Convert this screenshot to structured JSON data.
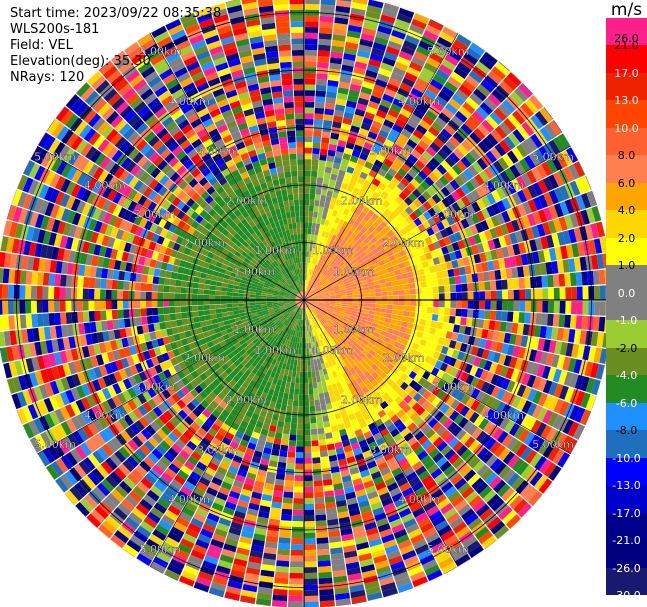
{
  "header": {
    "start_time": "Start time: 2023/09/22 08:35:38",
    "station": "WLS200s-181",
    "field": "Field: VEL",
    "elevation": "Elevation(deg): 35.30",
    "nrays": "NRays: 120"
  },
  "colorbar": {
    "unit": "m/s",
    "ticks": [
      "26.0",
      "21.0",
      "17.0",
      "13.0",
      "10.0",
      "8.0",
      "6.0",
      "4.0",
      "2.0",
      "1.0",
      "0.0",
      "-1.0",
      "-2.0",
      "-4.0",
      "-6.0",
      "-8.0",
      "-10.0",
      "-13.0",
      "-17.0",
      "-21.0",
      "-26.0",
      "-30.0"
    ],
    "colors": [
      "#ff1e8c",
      "#ff0000",
      "#ee2200",
      "#ff4500",
      "#ff6030",
      "#ff7f50",
      "#ffa500",
      "#ffd700",
      "#ffff00",
      "#808080",
      "#808080",
      "#9acd32",
      "#6b8e23",
      "#228b22",
      "#1e90ff",
      "#1f6fbf",
      "#0000ff",
      "#0000cd",
      "#00008b",
      "#000080",
      "#191970"
    ]
  },
  "chart_data": {
    "type": "ppi",
    "field": "VEL",
    "units": "m/s",
    "nrays": 120,
    "range_rings_km": [
      1.0,
      2.0,
      3.0,
      4.0,
      5.0
    ],
    "range_labels": {
      "1.0": "1.00km",
      "2.0": "2.00km",
      "3.0": "3.00km",
      "4.0": "4.00km",
      "5.0": "5.00km"
    }
  }
}
